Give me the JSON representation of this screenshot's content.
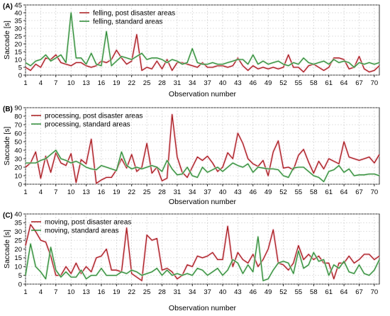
{
  "chart_data": [
    {
      "type": "line",
      "panel_label": "(A)",
      "ylabel": "Saccade [s]",
      "xlabel": "Observation number",
      "ylim": [
        0,
        45
      ],
      "yticks": [
        0,
        5,
        10,
        15,
        20,
        25,
        30,
        35,
        40,
        45
      ],
      "xticks": [
        1,
        4,
        7,
        10,
        13,
        16,
        19,
        22,
        25,
        28,
        31,
        34,
        37,
        40,
        43,
        46,
        49,
        52,
        55,
        58,
        61,
        64,
        67,
        70
      ],
      "xlim": [
        1,
        71
      ],
      "grid": true,
      "legend_position": "top",
      "series": [
        {
          "name": "felling, post disaster areas",
          "color": "#a8191a",
          "values": [
            5,
            3,
            7,
            5,
            11,
            10,
            13,
            8,
            7,
            6,
            8,
            8,
            6,
            5,
            6,
            9,
            8,
            10,
            16,
            11,
            7,
            9,
            26,
            3,
            5,
            4,
            9,
            4,
            10,
            3,
            8,
            8,
            7,
            6,
            5,
            8,
            5,
            5,
            6,
            6,
            5,
            6,
            11,
            6,
            3,
            6,
            4,
            5,
            4,
            5,
            4,
            5,
            13,
            5,
            5,
            2,
            6,
            7,
            5,
            3,
            5,
            11,
            11,
            10,
            4,
            5,
            12,
            4,
            2,
            3,
            6
          ]
        },
        {
          "name": "felling, standard areas",
          "color": "#2c8a35",
          "values": [
            8,
            6,
            9,
            10,
            13,
            9,
            11,
            13,
            8,
            40,
            11,
            11,
            7,
            14,
            7,
            6,
            28,
            6,
            9,
            12,
            11,
            10,
            12,
            14,
            10,
            11,
            11,
            10,
            8,
            10,
            9,
            7,
            8,
            17,
            8,
            7,
            7,
            8,
            7,
            7,
            8,
            9,
            10,
            10,
            7,
            13,
            7,
            9,
            7,
            8,
            9,
            7,
            6,
            8,
            7,
            11,
            8,
            7,
            8,
            9,
            7,
            10,
            8,
            9,
            8,
            5,
            8,
            7,
            8,
            7,
            8
          ]
        }
      ]
    },
    {
      "type": "line",
      "panel_label": "(B)",
      "ylabel": "Saccade [s]",
      "xlabel": "Observation number",
      "ylim": [
        0,
        90
      ],
      "yticks": [
        0,
        10,
        20,
        30,
        40,
        50,
        60,
        70,
        80,
        90
      ],
      "xticks": [
        1,
        4,
        7,
        10,
        13,
        16,
        19,
        22,
        25,
        28,
        31,
        34,
        37,
        40,
        43,
        46,
        49,
        52,
        55,
        58,
        61,
        64,
        67,
        70
      ],
      "xlim": [
        1,
        71
      ],
      "grid": true,
      "legend_position": "top-left",
      "series": [
        {
          "name": "processing, post disaster areas",
          "color": "#a8191a",
          "values": [
            20,
            25,
            38,
            7,
            33,
            14,
            37,
            25,
            22,
            36,
            2,
            29,
            24,
            53,
            1,
            5,
            8,
            8,
            17,
            30,
            19,
            35,
            15,
            20,
            48,
            13,
            20,
            4,
            7,
            82,
            32,
            14,
            8,
            20,
            32,
            28,
            33,
            25,
            15,
            20,
            37,
            30,
            60,
            48,
            30,
            24,
            21,
            28,
            10,
            38,
            51,
            19,
            20,
            17,
            34,
            41,
            26,
            13,
            27,
            18,
            30,
            27,
            24,
            50,
            32,
            30,
            28,
            30,
            32,
            25,
            35
          ]
        },
        {
          "name": "processing, standard areas",
          "color": "#2c8a35",
          "values": [
            25,
            25,
            25,
            28,
            30,
            35,
            40,
            30,
            28,
            25,
            27,
            24,
            20,
            18,
            17,
            22,
            20,
            18,
            16,
            38,
            22,
            18,
            20,
            18,
            20,
            22,
            20,
            15,
            28,
            18,
            11,
            12,
            20,
            10,
            8,
            20,
            14,
            17,
            20,
            15,
            20,
            25,
            22,
            20,
            24,
            14,
            20,
            19,
            18,
            18,
            17,
            10,
            8,
            19,
            20,
            20,
            15,
            10,
            8,
            3,
            15,
            17,
            22,
            14,
            18,
            10,
            11,
            11,
            12,
            12,
            10
          ]
        }
      ]
    },
    {
      "type": "line",
      "panel_label": "(C)",
      "ylabel": "Saccade [s]",
      "xlabel": "Observation number",
      "ylim": [
        0,
        40
      ],
      "yticks": [
        0,
        5,
        10,
        15,
        20,
        25,
        30,
        35,
        40
      ],
      "xticks": [
        1,
        4,
        7,
        10,
        13,
        16,
        19,
        22,
        25,
        28,
        31,
        34,
        37,
        40,
        43,
        46,
        49,
        52,
        55,
        58,
        61,
        64,
        67,
        70
      ],
      "xlim": [
        1,
        71
      ],
      "grid": true,
      "legend_position": "top-left",
      "series": [
        {
          "name": "moving, post disaster areas",
          "color": "#a8191a",
          "values": [
            22,
            34,
            30,
            25,
            24,
            16,
            5,
            5,
            10,
            6,
            12,
            6,
            10,
            7,
            15,
            16,
            20,
            8,
            8,
            7,
            32,
            6,
            4,
            2,
            28,
            25,
            26,
            8,
            9,
            7,
            3,
            5,
            11,
            10,
            16,
            15,
            16,
            18,
            14,
            14,
            33,
            10,
            18,
            14,
            12,
            17,
            10,
            14,
            20,
            31,
            12,
            11,
            8,
            12,
            22,
            14,
            17,
            14,
            16,
            12,
            12,
            3,
            12,
            12,
            16,
            12,
            14,
            17,
            17,
            14,
            16
          ]
        },
        {
          "name": "moving, standard areas",
          "color": "#2c8a35",
          "values": [
            5,
            23,
            10,
            7,
            3,
            21,
            8,
            4,
            7,
            4,
            4,
            8,
            3,
            5,
            5,
            9,
            5,
            5,
            5,
            7,
            6,
            8,
            7,
            5,
            6,
            7,
            9,
            5,
            8,
            5,
            6,
            5,
            6,
            5,
            9,
            8,
            5,
            7,
            9,
            5,
            8,
            14,
            12,
            6,
            11,
            7,
            27,
            2,
            3,
            8,
            12,
            13,
            12,
            6,
            19,
            9,
            11,
            18,
            13,
            14,
            5,
            11,
            9,
            13,
            7,
            6,
            11,
            6,
            5,
            8,
            14
          ]
        }
      ]
    }
  ]
}
